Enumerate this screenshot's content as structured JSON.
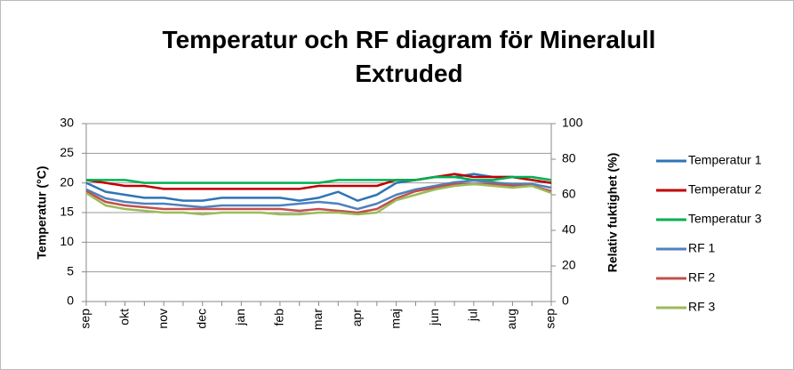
{
  "chart_data": {
    "type": "line",
    "title": "Temperatur och RF diagram för Mineralull Extruded",
    "y_label": "Temperatur (°C)",
    "y2_label": "Relativ fuktighet (%)",
    "categories": [
      "sep",
      null,
      "okt",
      null,
      "nov",
      null,
      "dec",
      null,
      "jan",
      null,
      "feb",
      null,
      "mar",
      null,
      "apr",
      null,
      "maj",
      null,
      "jun",
      null,
      "jul",
      null,
      "aug",
      null,
      "sep"
    ],
    "ylim": [
      0,
      30
    ],
    "yticks": [
      0,
      5,
      10,
      15,
      20,
      25,
      30
    ],
    "y2lim": [
      0,
      100
    ],
    "y2ticks": [
      0,
      20,
      40,
      60,
      80,
      100
    ],
    "grid": true,
    "legend": "right",
    "series": [
      {
        "name": "Temperatur 1",
        "color": "#2e75b6",
        "values": [
          20,
          18.5,
          18,
          17.5,
          17.5,
          17,
          17,
          17.5,
          17.5,
          17.5,
          17.5,
          17,
          17.5,
          18.5,
          17,
          18,
          20,
          20.5,
          21,
          21,
          21.5,
          21,
          21,
          20.5,
          20
        ]
      },
      {
        "name": "Temperatur 2",
        "color": "#c00000",
        "values": [
          20.5,
          20,
          19.5,
          19.5,
          19,
          19,
          19,
          19,
          19,
          19,
          19,
          19,
          19.5,
          19.5,
          19.5,
          19.5,
          20.5,
          20.5,
          21,
          21.5,
          21,
          21,
          21,
          20.5,
          20
        ]
      },
      {
        "name": "Temperatur 3",
        "color": "#00b050",
        "values": [
          20.5,
          20.5,
          20.5,
          20,
          20,
          20,
          20,
          20,
          20,
          20,
          20,
          20,
          20,
          20.5,
          20.5,
          20.5,
          20.5,
          20.5,
          21,
          21,
          20.5,
          20.5,
          21,
          21,
          20.5
        ]
      },
      {
        "name": "RF 1",
        "color": "#4f81bd",
        "axis": "y2",
        "values": [
          63,
          58,
          56,
          55,
          55,
          54,
          53,
          54,
          54,
          54,
          54,
          55,
          56,
          55,
          52,
          55,
          60,
          63,
          65,
          67,
          68,
          67,
          66,
          66,
          64
        ]
      },
      {
        "name": "RF 2",
        "color": "#c0504d",
        "axis": "y2",
        "values": [
          62,
          56,
          54,
          53,
          52,
          52,
          52,
          52,
          52,
          52,
          52,
          51,
          52,
          51,
          50,
          52,
          58,
          62,
          64,
          66,
          66,
          66,
          65,
          65,
          62
        ]
      },
      {
        "name": "RF 3",
        "color": "#9bbb59",
        "axis": "y2",
        "values": [
          61,
          54,
          52,
          51,
          50,
          50,
          49,
          50,
          50,
          50,
          49,
          49,
          50,
          50,
          49,
          50,
          57,
          60,
          63,
          65,
          66,
          65,
          64,
          65,
          61
        ]
      }
    ]
  }
}
